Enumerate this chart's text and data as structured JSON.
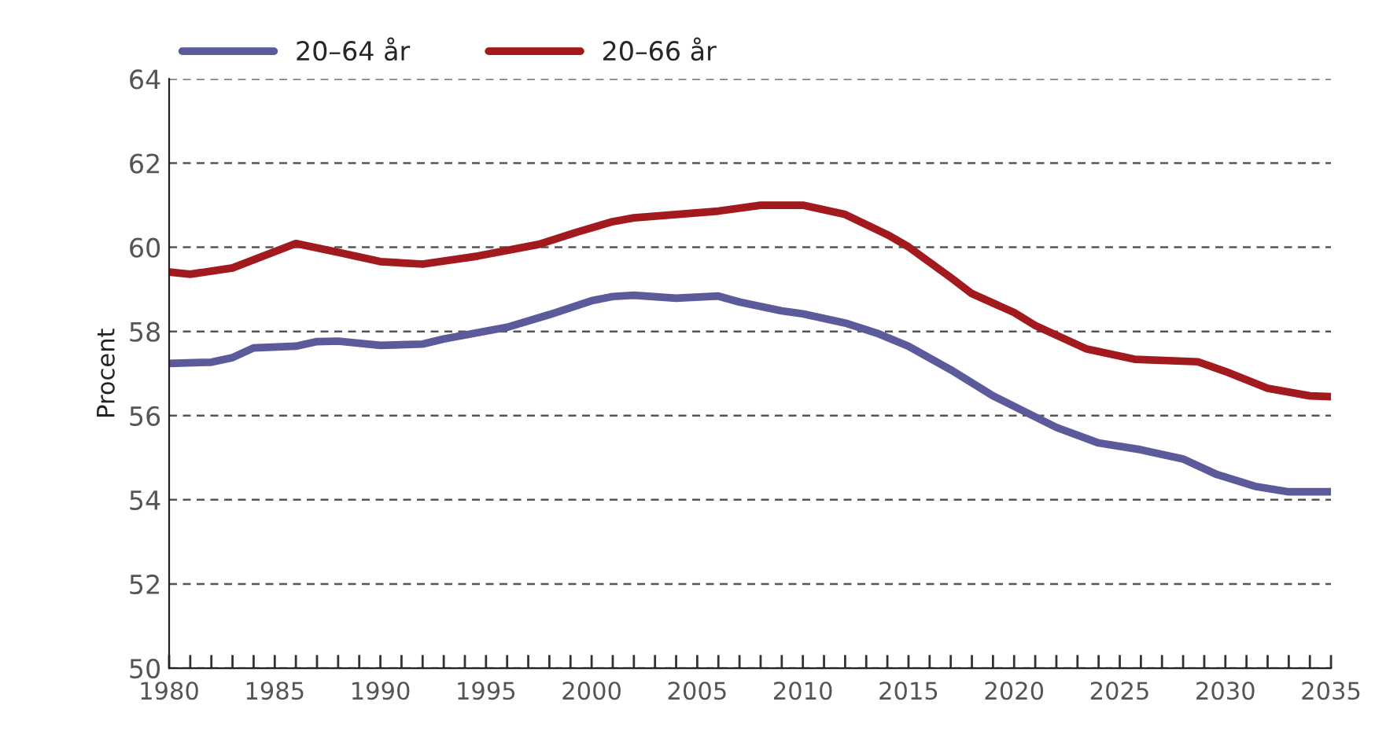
{
  "chart_data": {
    "type": "line",
    "ylabel": "Procent",
    "xlim": [
      1980,
      2035
    ],
    "ylim": [
      50,
      64
    ],
    "yticks": [
      50,
      52,
      54,
      56,
      58,
      60,
      62,
      64
    ],
    "xticks": [
      1980,
      {
        "value": 1981,
        "label": null
      },
      {
        "value": 1982,
        "label": null
      },
      {
        "value": 1983,
        "label": null
      },
      {
        "value": 1984,
        "label": null
      },
      1985,
      {
        "value": 1986,
        "label": null
      },
      {
        "value": 1987,
        "label": null
      },
      {
        "value": 1988,
        "label": null
      },
      {
        "value": 1989,
        "label": null
      },
      1990,
      {
        "value": 1991,
        "label": null
      },
      {
        "value": 1992,
        "label": null
      },
      {
        "value": 1993,
        "label": null
      },
      {
        "value": 1994,
        "label": null
      },
      1995,
      {
        "value": 1996,
        "label": null
      },
      {
        "value": 1997,
        "label": null
      },
      {
        "value": 1998,
        "label": null
      },
      {
        "value": 1999,
        "label": null
      },
      2000,
      {
        "value": 2001,
        "label": null
      },
      {
        "value": 2002,
        "label": null
      },
      {
        "value": 2003,
        "label": null
      },
      {
        "value": 2004,
        "label": null
      },
      2005,
      {
        "value": 2006,
        "label": null
      },
      {
        "value": 2007,
        "label": null
      },
      {
        "value": 2008,
        "label": null
      },
      {
        "value": 2009,
        "label": null
      },
      2010,
      {
        "value": 2011,
        "label": null
      },
      {
        "value": 2012,
        "label": null
      },
      {
        "value": 2013,
        "label": null
      },
      {
        "value": 2014,
        "label": null
      },
      2015,
      {
        "value": 2016,
        "label": null
      },
      {
        "value": 2017,
        "label": null
      },
      {
        "value": 2018,
        "label": null
      },
      {
        "value": 2019,
        "label": null
      },
      2020,
      {
        "value": 2021,
        "label": null
      },
      {
        "value": 2022,
        "label": null
      },
      {
        "value": 2023,
        "label": null
      },
      {
        "value": 2024,
        "label": null
      },
      2025,
      {
        "value": 2026,
        "label": null
      },
      {
        "value": 2027,
        "label": null
      },
      {
        "value": 2028,
        "label": null
      },
      {
        "value": 2029,
        "label": null
      },
      2030,
      {
        "value": 2031,
        "label": null
      },
      {
        "value": 2032,
        "label": null
      },
      {
        "value": 2033,
        "label": null
      },
      {
        "value": 2034,
        "label": null
      },
      2035
    ],
    "grid": "y",
    "legend": "top left",
    "marker": "none",
    "line_style": "solid",
    "series": [
      {
        "name": "20–64 år",
        "color": "#5b5b9c",
        "x": [
          1980,
          1982,
          1983,
          1984,
          1986,
          1987,
          1988,
          1990,
          1992,
          1993,
          1996,
          1998,
          2000,
          2001,
          2002,
          2004,
          2006,
          2007,
          2009,
          2010,
          2012,
          2013.5,
          2015,
          2017,
          2019,
          2020,
          2022,
          2024,
          2026,
          2028,
          2029.6,
          2031.4,
          2033,
          2035
        ],
        "values": [
          57.24,
          57.27,
          57.38,
          57.61,
          57.65,
          57.76,
          57.77,
          57.67,
          57.7,
          57.82,
          58.1,
          58.4,
          58.73,
          58.83,
          58.86,
          58.79,
          58.84,
          58.7,
          58.49,
          58.42,
          58.2,
          57.96,
          57.65,
          57.09,
          56.47,
          56.22,
          55.72,
          55.35,
          55.19,
          54.97,
          54.6,
          54.32,
          54.19,
          54.19
        ]
      },
      {
        "name": "20–66 år",
        "color": "#a31a1e",
        "x": [
          1980,
          1981,
          1983,
          1986,
          1988,
          1990,
          1992,
          1994.6,
          1997.5,
          1999.3,
          2001,
          2002,
          2006,
          2008,
          2010,
          2012,
          2014,
          2015,
          2017,
          2018,
          2020,
          2021,
          2023.4,
          2025.7,
          2028.7,
          2030,
          2032,
          2034,
          2035
        ],
        "values": [
          59.41,
          59.36,
          59.51,
          60.09,
          59.88,
          59.66,
          59.6,
          59.79,
          60.07,
          60.36,
          60.61,
          60.7,
          60.86,
          61.0,
          61.0,
          60.78,
          60.3,
          60.01,
          59.28,
          58.9,
          58.45,
          58.14,
          57.59,
          57.34,
          57.28,
          57.05,
          56.65,
          56.47,
          56.45
        ]
      }
    ]
  }
}
